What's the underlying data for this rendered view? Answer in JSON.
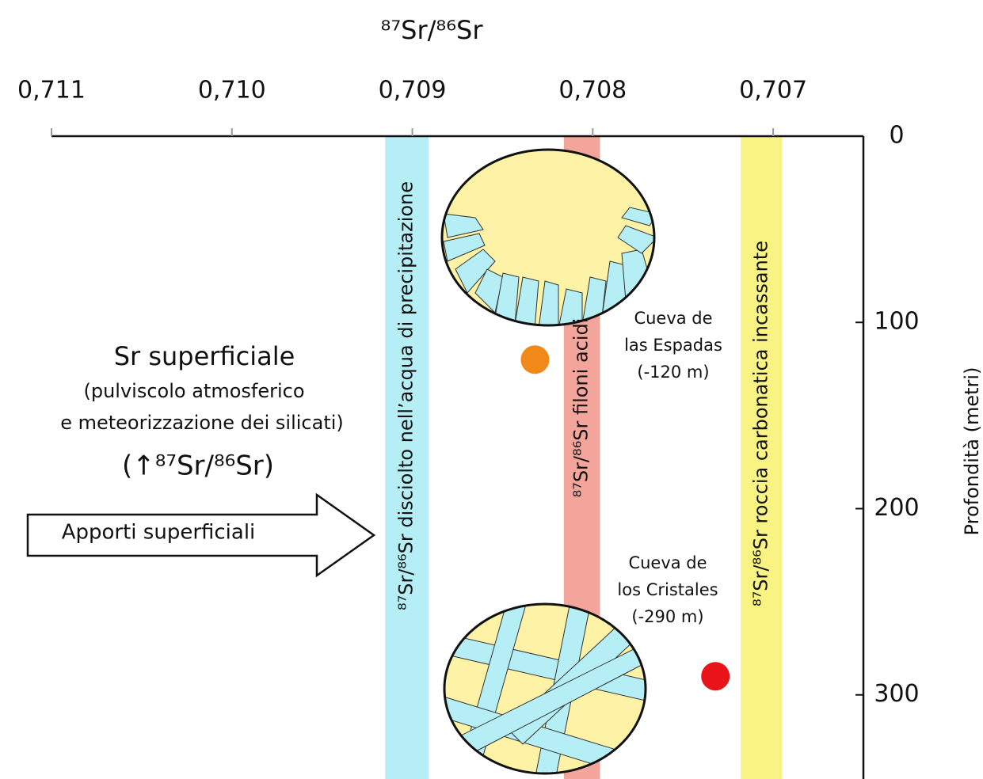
{
  "chart_data": {
    "type": "scatter",
    "title": "⁸⁷Sr/⁸⁶Sr",
    "ylabel": "Profondità (metri)",
    "xlim": [
      0.711,
      0.7065
    ],
    "ylim": [
      0,
      345
    ],
    "xticks": [
      {
        "value": 0.711,
        "label": "0,711"
      },
      {
        "value": 0.71,
        "label": "0,710"
      },
      {
        "value": 0.709,
        "label": "0,709"
      },
      {
        "value": 0.708,
        "label": "0,708"
      },
      {
        "value": 0.707,
        "label": "0,707"
      }
    ],
    "yticks": [
      0,
      100,
      200,
      300
    ],
    "bands": [
      {
        "range": [
          0.70915,
          0.70891
        ],
        "color": "#b5eef4",
        "label": "⁸⁷Sr/⁸⁶Sr disciolto nell’acqua di precipitazione"
      },
      {
        "range": [
          0.70816,
          0.70796
        ],
        "color": "#f4a59b",
        "label": "⁸⁷Sr/⁸⁶Sr  filoni acidi"
      },
      {
        "range": [
          0.70718,
          0.70695
        ],
        "color": "#f8f383",
        "label": "⁸⁷Sr/⁸⁶Sr  roccia carbonatica incassante"
      }
    ],
    "points": {
      "x": [
        0.70832,
        0.70732
      ],
      "values": [
        120,
        290
      ],
      "colors": [
        "#f0891a",
        "#e8141a"
      ]
    },
    "cave_labels": [
      [
        "Cueva de",
        "las Espadas",
        "(-120 m)"
      ],
      [
        "Cueva de",
        "los Cristales",
        "(-290 m)"
      ]
    ],
    "left_text": [
      "Sr superficiale",
      "(pulviscolo atmosferico",
      "e meteorizzazione dei silicati)",
      "(↑⁸⁷Sr/⁸⁶Sr)"
    ],
    "arrow_label": "Apporti superficiali"
  }
}
